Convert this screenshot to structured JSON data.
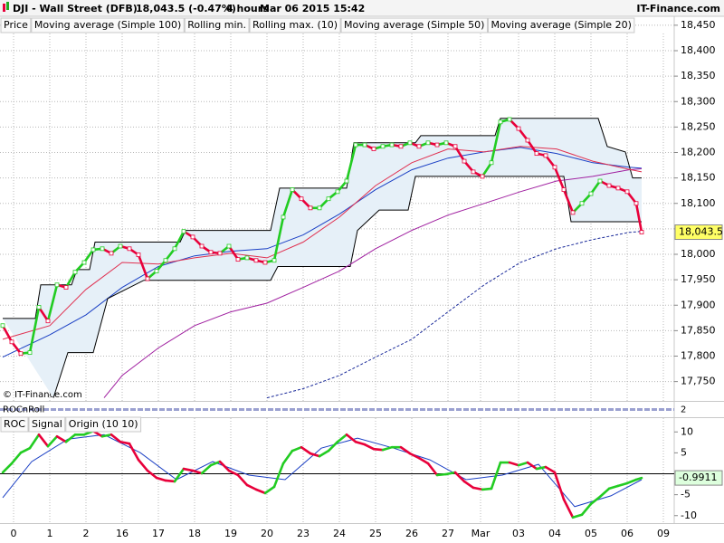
{
  "header": {
    "title": "DJI - Wall Street (DFB)",
    "price": "18,043.5 (-0.47%)",
    "interval": "4 hours",
    "timestamp": "Mar 06 2015 15:42",
    "brand": "IT-Finance.com"
  },
  "watermark": "© IT-Finance.com",
  "chart_data": [
    {
      "type": "line",
      "grid": true,
      "band_color": "#e6f0f8",
      "ylim": [
        17712,
        18464
      ],
      "yticks": [
        {
          "value": 18450,
          "label": "18,450"
        },
        {
          "value": 18400,
          "label": "18,400"
        },
        {
          "value": 18350,
          "label": "18,350"
        },
        {
          "value": 18300,
          "label": "18,300"
        },
        {
          "value": 18250,
          "label": "18,250"
        },
        {
          "value": 18200,
          "label": "18,200"
        },
        {
          "value": 18150,
          "label": "18,150"
        },
        {
          "value": 18100,
          "label": "18,100"
        },
        {
          "value": 18050,
          "label": "18,050"
        },
        {
          "value": 18000,
          "label": "18,000"
        },
        {
          "value": 17950,
          "label": "17,950"
        },
        {
          "value": 17900,
          "label": "17,900"
        },
        {
          "value": 17850,
          "label": "17,850"
        },
        {
          "value": 17800,
          "label": "17,800"
        },
        {
          "value": 17750,
          "label": "17,750"
        }
      ],
      "series": [
        {
          "name": "Price",
          "color": "#e8003a",
          "up_color": "#22cc22",
          "down_color": "#e8003a",
          "markers": true,
          "last_label": "18,043.5",
          "last_label_color": "#ffff66",
          "x": [
            -0.3,
            -0.05,
            0.2,
            0.45,
            0.7,
            0.95,
            1.2,
            1.45,
            1.7,
            1.95,
            2.2,
            2.45,
            2.7,
            2.95,
            3.2,
            3.45,
            3.7,
            3.95,
            4.2,
            4.45,
            4.7,
            4.95,
            5.2,
            5.45,
            5.7,
            5.95,
            6.2,
            6.45,
            6.7,
            6.95,
            7.2,
            7.45,
            7.7,
            7.95,
            8.2,
            8.45,
            8.7,
            8.95,
            9.2,
            9.45,
            9.7,
            9.95,
            10.2,
            10.45,
            10.7,
            10.95,
            11.2,
            11.45,
            11.7,
            11.95,
            12.2,
            12.45,
            12.7,
            12.95,
            13.2,
            13.45,
            13.7,
            13.95,
            14.2,
            14.45,
            14.7,
            14.95,
            15.2,
            15.45,
            15.7,
            15.95,
            16.2,
            16.45,
            16.7,
            16.95,
            17.2,
            17.35
          ],
          "values": [
            17860,
            17828,
            17805,
            17807,
            17896,
            17869,
            17940,
            17935,
            17965,
            17984,
            18009,
            18011,
            18002,
            18016,
            18011,
            17999,
            17952,
            17967,
            17988,
            18011,
            18045,
            18034,
            18016,
            18004,
            18002,
            18016,
            17990,
            17993,
            17988,
            17984,
            17988,
            18073,
            18127,
            18109,
            18091,
            18091,
            18109,
            18123,
            18144,
            18215,
            18215,
            18207,
            18212,
            18215,
            18212,
            18219,
            18212,
            18219,
            18215,
            18219,
            18212,
            18183,
            18162,
            18153,
            18180,
            18260,
            18265,
            18247,
            18224,
            18198,
            18194,
            18171,
            18127,
            18082,
            18100,
            18119,
            18144,
            18135,
            18130,
            18123,
            18100,
            18043.5
          ]
        },
        {
          "name": "Moving average (Simple 100)",
          "color": "#1a3fc4",
          "x": [
            -0.3,
            1,
            2,
            3,
            4,
            5,
            6,
            7,
            8,
            9,
            10,
            11,
            12,
            13,
            14,
            15,
            16,
            17,
            17.35
          ],
          "values": [
            17798,
            17842,
            17881,
            17935,
            17976,
            17997,
            18006,
            18011,
            18038,
            18079,
            18127,
            18166,
            18189,
            18201,
            18210,
            18198,
            18180,
            18171,
            18169
          ]
        },
        {
          "name": "Rolling min.",
          "color": "#000000",
          "x": [
            1.1,
            1.5,
            2.2,
            2.6,
            3.6,
            7.1,
            7.3,
            9.3,
            9.5,
            10.1,
            10.9,
            11.1,
            15.2,
            15.4,
            17.35
          ],
          "values": [
            17718,
            17807,
            17807,
            17913,
            17949,
            17949,
            17976,
            17976,
            18047,
            18087,
            18087,
            18153,
            18153,
            18064,
            18064
          ]
        },
        {
          "name": "Rolling max. (10)",
          "color": "#000000",
          "x": [
            -0.3,
            0.6,
            0.75,
            1.6,
            1.75,
            2.1,
            2.25,
            4.6,
            4.75,
            7.1,
            7.35,
            9.2,
            9.4,
            11.1,
            11.25,
            13.3,
            13.45,
            16.15,
            16.4,
            16.9,
            17.1,
            17.35
          ],
          "values": [
            17874,
            17874,
            17940,
            17940,
            17970,
            17970,
            18024,
            18024,
            18047,
            18047,
            18130,
            18130,
            18219,
            18219,
            18233,
            18233,
            18267,
            18267,
            18212,
            18201,
            18150,
            18150
          ]
        },
        {
          "name": "Moving average (Simple 50)",
          "color": "#a020a0",
          "x": [
            2.5,
            3,
            4,
            5,
            6,
            7,
            8,
            9,
            10,
            11,
            12,
            13,
            14,
            15,
            16,
            17,
            17.35
          ],
          "values": [
            17718,
            17762,
            17816,
            17860,
            17887,
            17904,
            17935,
            17967,
            18011,
            18047,
            18077,
            18100,
            18123,
            18144,
            18153,
            18166,
            18168
          ]
        },
        {
          "name": "Moving average (Simple 20)",
          "color": "#e03050",
          "x": [
            -0.3,
            1,
            2,
            3,
            4,
            5,
            6,
            7,
            8,
            9,
            10,
            11,
            12,
            13,
            14,
            15,
            16,
            17,
            17.35
          ],
          "values": [
            17833,
            17860,
            17931,
            17984,
            17981,
            17993,
            18002,
            17993,
            18024,
            18073,
            18135,
            18180,
            18207,
            18201,
            18212,
            18207,
            18183,
            18167,
            18162
          ]
        },
        {
          "color": "#1a2a9a",
          "dash": true,
          "x": [
            7,
            8,
            9,
            10,
            11,
            12,
            13,
            14,
            15,
            16,
            17,
            17.35
          ],
          "values": [
            17718,
            17736,
            17762,
            17798,
            17833,
            17887,
            17940,
            17984,
            18011,
            18029,
            18043,
            18045
          ]
        }
      ]
    },
    {
      "type": "strip",
      "title": "ROCnRoll",
      "yticks": [
        2
      ]
    },
    {
      "type": "line",
      "xgrid": true,
      "origin": 0,
      "origin_label": "Origin (10 10)",
      "xlim": [
        -0.375,
        18.25
      ],
      "xticks": [
        0,
        1,
        2,
        {
          "value": 3,
          "label": "16"
        },
        {
          "value": 4,
          "label": "17"
        },
        {
          "value": 5,
          "label": "18"
        },
        {
          "value": 6,
          "label": "19"
        },
        {
          "value": 7,
          "label": "20"
        },
        {
          "value": 8,
          "label": "23"
        },
        {
          "value": 9,
          "label": "24"
        },
        {
          "value": 10,
          "label": "25"
        },
        {
          "value": 11,
          "label": "26"
        },
        {
          "value": 12,
          "label": "27"
        },
        {
          "value": 12.9,
          "label": "Mar"
        },
        {
          "value": 13.95,
          "label": "03"
        },
        {
          "value": 14.95,
          "label": "04"
        },
        {
          "value": 15.95,
          "label": "05"
        },
        {
          "value": 16.95,
          "label": "06"
        },
        {
          "value": 17.95,
          "label": "09"
        }
      ],
      "ylim": [
        -12,
        13.3
      ],
      "yticks": [
        10,
        5,
        -5,
        -10
      ],
      "series": [
        {
          "name": "ROC",
          "color": "#22cc22",
          "up_color": "#22cc22",
          "down_color": "#e8003a",
          "last_label": "-0.9911",
          "last_label_color": "#ddffdd",
          "x": [
            -0.3,
            -0.05,
            0.2,
            0.45,
            0.7,
            0.95,
            1.2,
            1.45,
            1.7,
            1.95,
            2.2,
            2.45,
            2.7,
            2.95,
            3.2,
            3.45,
            3.7,
            3.95,
            4.2,
            4.45,
            4.7,
            4.95,
            5.2,
            5.45,
            5.7,
            5.95,
            6.2,
            6.45,
            6.7,
            6.95,
            7.2,
            7.45,
            7.7,
            7.95,
            8.2,
            8.45,
            8.7,
            8.95,
            9.2,
            9.45,
            9.7,
            9.95,
            10.2,
            10.45,
            10.7,
            10.95,
            11.2,
            11.45,
            11.7,
            11.95,
            12.2,
            12.45,
            12.7,
            12.95,
            13.2,
            13.45,
            13.7,
            13.95,
            14.2,
            14.45,
            14.7,
            14.95,
            15.2,
            15.45,
            15.7,
            15.95,
            16.2,
            16.45,
            16.7,
            16.95,
            17.2,
            17.35
          ],
          "values": [
            0.32,
            2.47,
            5.05,
            6.13,
            9.35,
            6.56,
            8.92,
            7.63,
            9.35,
            9.35,
            10.22,
            8.92,
            9.35,
            7.63,
            7.2,
            3.33,
            0.75,
            -0.97,
            -1.61,
            -1.83,
            1.18,
            0.75,
            0.11,
            2.04,
            2.9,
            0.75,
            -0.32,
            -2.69,
            -3.76,
            -4.62,
            -3.12,
            2.47,
            5.48,
            6.34,
            4.84,
            4.19,
            5.48,
            7.63,
            9.35,
            7.63,
            6.99,
            5.91,
            5.7,
            6.34,
            6.34,
            4.84,
            3.76,
            2.47,
            -0.32,
            -0.11,
            0.32,
            -1.83,
            -3.33,
            -3.76,
            -3.55,
            2.69,
            2.69,
            2.04,
            2.69,
            1.18,
            1.61,
            0.32,
            -6.13,
            -10.43,
            -9.78,
            -7.2,
            -5.48,
            -3.55,
            -2.9,
            -2.26,
            -1.4,
            -0.9911
          ]
        },
        {
          "name": "Signal",
          "color": "#1a3fc4",
          "x": [
            -0.3,
            0.5,
            1.5,
            2.5,
            3.5,
            4.5,
            5.5,
            6.5,
            7.5,
            8.5,
            9.5,
            10.5,
            11.5,
            12.5,
            13.5,
            14.5,
            15.5,
            16.5,
            17.35
          ],
          "values": [
            -5.7,
            2.9,
            8.28,
            9.35,
            5.05,
            -1.4,
            2.9,
            -0.32,
            -1.4,
            6.13,
            8.49,
            6.13,
            3.33,
            -1.4,
            -0.32,
            2.26,
            -7.85,
            -5.27,
            -1.4
          ]
        }
      ]
    }
  ]
}
